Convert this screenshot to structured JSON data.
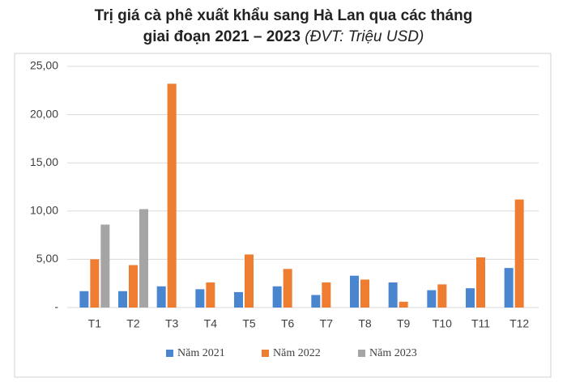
{
  "chart_data": {
    "type": "bar",
    "title_lines": [
      "Trị giá cà phê xuất khẩu sang Hà Lan qua các tháng",
      "giai đoạn 2021 – 2023"
    ],
    "unit": "(ĐVT: Triệu USD)",
    "categories": [
      "T1",
      "T2",
      "T3",
      "T4",
      "T5",
      "T6",
      "T7",
      "T8",
      "T9",
      "T10",
      "T11",
      "T12"
    ],
    "series": [
      {
        "name": "Năm 2021",
        "color": "#4a86cf",
        "values": [
          1.7,
          1.7,
          2.2,
          1.9,
          1.6,
          2.2,
          1.3,
          3.3,
          2.6,
          1.8,
          2.0,
          4.1
        ]
      },
      {
        "name": "Năm 2022",
        "color": "#ee7d31",
        "values": [
          5.0,
          4.4,
          23.2,
          2.6,
          5.5,
          4.0,
          2.6,
          2.9,
          0.6,
          2.4,
          5.2,
          11.2
        ]
      },
      {
        "name": "Năm 2023",
        "color": "#a5a5a5",
        "values": [
          8.6,
          10.2,
          null,
          null,
          null,
          null,
          null,
          null,
          null,
          null,
          null,
          null
        ]
      }
    ],
    "ylim": [
      0,
      25
    ],
    "yticks": [
      {
        "value": 0,
        "label": "-"
      },
      {
        "value": 5,
        "label": "5,00"
      },
      {
        "value": 10,
        "label": "10,00"
      },
      {
        "value": 15,
        "label": "15,00"
      },
      {
        "value": 20,
        "label": "20,00"
      },
      {
        "value": 25,
        "label": "25,00"
      }
    ],
    "grid": true
  }
}
